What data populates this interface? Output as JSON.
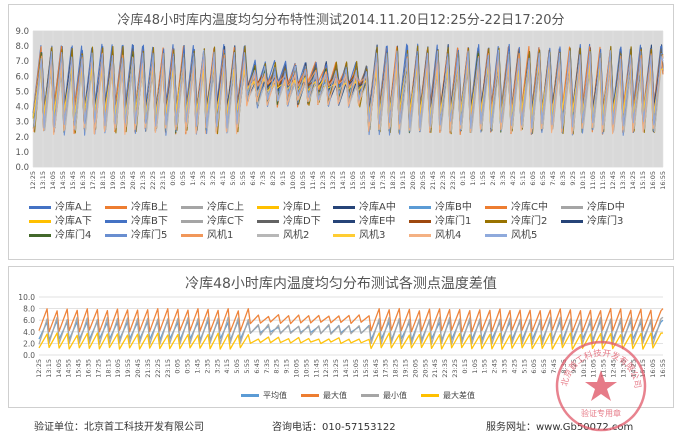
{
  "chart_data": [
    {
      "type": "line",
      "title": "冷库48小时库内温度均匀分布特性测试2014.11.20日12:25分-22日17:20分",
      "ylim": [
        0,
        9
      ],
      "yticks": [
        "0.0",
        "1.0",
        "2.0",
        "3.0",
        "4.0",
        "5.0",
        "6.0",
        "7.0",
        "8.0",
        "9.0"
      ],
      "grid": true,
      "legend_position": "bottom",
      "xticks": [
        "12:25",
        "13:15",
        "14:05",
        "14:55",
        "15:45",
        "16:35",
        "17:25",
        "18:15",
        "19:05",
        "19:55",
        "20:45",
        "21:35",
        "22:25",
        "23:15",
        "0:05",
        "0:55",
        "1:45",
        "2:35",
        "3:25",
        "4:15",
        "5:05",
        "5:55",
        "6:45",
        "7:35",
        "8:25",
        "9:15",
        "10:05",
        "10:55",
        "11:45",
        "12:35",
        "13:25",
        "14:15",
        "15:05",
        "15:55",
        "16:45",
        "17:35",
        "18:25",
        "19:15",
        "20:05",
        "20:55",
        "21:45",
        "22:35",
        "23:25",
        "0:15",
        "1:05",
        "1:55",
        "2:45",
        "3:35",
        "4:25",
        "5:15",
        "6:05",
        "6:55",
        "7:45",
        "8:35",
        "9:25",
        "10:15",
        "11:05",
        "11:55",
        "12:45",
        "13:35",
        "14:25",
        "15:15",
        "16:05",
        "16:55"
      ],
      "series": [
        {
          "name": "冷库A上",
          "color": "#4472C4"
        },
        {
          "name": "冷库B上",
          "color": "#ED7D31"
        },
        {
          "name": "冷库C上",
          "color": "#A5A5A5"
        },
        {
          "name": "冷库D上",
          "color": "#FFC000"
        },
        {
          "name": "冷库A中",
          "color": "#264478"
        },
        {
          "name": "冷库B中",
          "color": "#5B9BD5"
        },
        {
          "name": "冷库C中",
          "color": "#ED7D31"
        },
        {
          "name": "冷库D中",
          "color": "#A5A5A5"
        },
        {
          "name": "冷库A下",
          "color": "#FFC000"
        },
        {
          "name": "冷库B下",
          "color": "#4472C4"
        },
        {
          "name": "冷库C下",
          "color": "#A5A5A5"
        },
        {
          "name": "冷库D下",
          "color": "#636363"
        },
        {
          "name": "冷库E中",
          "color": "#264478"
        },
        {
          "name": "冷库门1",
          "color": "#9E480E"
        },
        {
          "name": "冷库门2",
          "color": "#997300"
        },
        {
          "name": "冷库门3",
          "color": "#264478"
        },
        {
          "name": "冷库门4",
          "color": "#43682B"
        },
        {
          "name": "冷库门5",
          "color": "#698ED0"
        },
        {
          "name": "风机1",
          "color": "#F1975A"
        },
        {
          "name": "风机2",
          "color": "#B7B7B7"
        },
        {
          "name": "风机3",
          "color": "#FFCD33"
        },
        {
          "name": "风机4",
          "color": "#F4B183"
        },
        {
          "name": "风机5",
          "color": "#8FAADC"
        }
      ],
      "cycles": 62,
      "typical_range": [
        2.0,
        7.8
      ]
    },
    {
      "type": "line",
      "title": "冷库48小时库内温度均匀分布测试各测点温度差值",
      "ylim": [
        0,
        10
      ],
      "yticks": [
        "0.0",
        "2.0",
        "4.0",
        "6.0",
        "8.0",
        "10.0"
      ],
      "grid": true,
      "legend_position": "bottom",
      "xticks": [
        "12:25",
        "13:15",
        "14:05",
        "14:55",
        "15:45",
        "16:35",
        "17:25",
        "18:15",
        "19:05",
        "19:55",
        "20:45",
        "21:35",
        "22:25",
        "23:15",
        "0:05",
        "0:55",
        "1:45",
        "2:35",
        "3:25",
        "4:15",
        "5:05",
        "5:55",
        "6:45",
        "7:35",
        "8:25",
        "9:15",
        "10:05",
        "10:55",
        "11:45",
        "12:35",
        "13:25",
        "14:15",
        "15:05",
        "15:55",
        "16:45",
        "17:35",
        "18:25",
        "19:15",
        "20:05",
        "20:55",
        "21:45",
        "22:35",
        "23:25",
        "0:15",
        "1:05",
        "1:55",
        "2:45",
        "3:35",
        "4:25",
        "5:15",
        "6:05",
        "6:55",
        "7:45",
        "8:35",
        "9:25",
        "10:15",
        "11:05",
        "11:55",
        "12:45",
        "13:35",
        "14:25",
        "15:15",
        "16:05",
        "16:55"
      ],
      "series": [
        {
          "name": "平均值",
          "color": "#5B9BD5",
          "range": [
            2.5,
            6.0
          ]
        },
        {
          "name": "最大值",
          "color": "#ED7D31",
          "range": [
            4.0,
            8.0
          ]
        },
        {
          "name": "最小值",
          "color": "#A5A5A5",
          "range": [
            1.8,
            6.5
          ]
        },
        {
          "name": "最大差值",
          "color": "#FFC000",
          "range": [
            1.0,
            3.8
          ]
        }
      ],
      "cycles": 62
    }
  ],
  "footer": {
    "unit": "验证单位：北京首工科技开发有限公司",
    "phone": "咨询电话：010-57153122",
    "site": "服务网址：www.Gb50072.com"
  },
  "stamp": {
    "text": "北京首工科技开发有限公司",
    "subtext": "验证专用章",
    "color": "#E05A6A"
  }
}
